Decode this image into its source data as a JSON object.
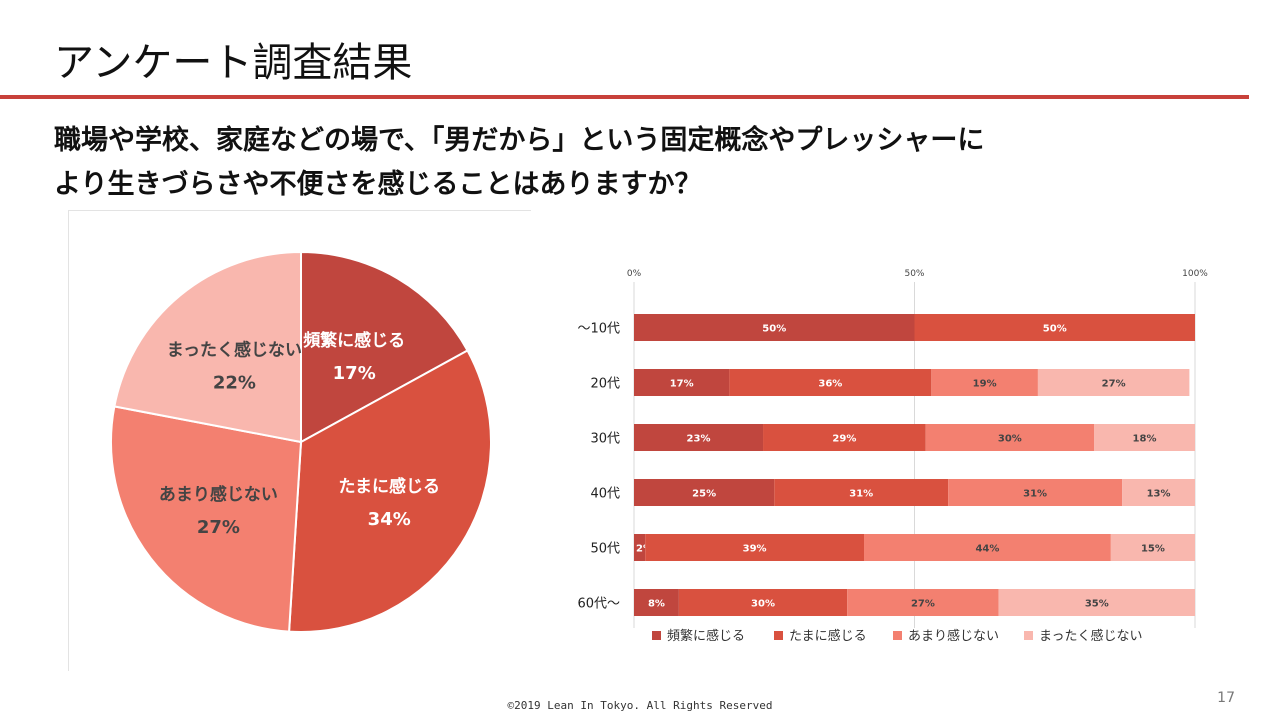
{
  "title": "アンケート調査結果",
  "question": {
    "line1": "職場や学校、家庭などの場で、「男だから」という固定概念やプレッシャーに",
    "line2": "より生きづらさや不便さを感じることはありますか？"
  },
  "colors": {
    "accent_rule": "#c8413a",
    "category": [
      "#c0463e",
      "#d9513f",
      "#f38070",
      "#f9b7ae"
    ]
  },
  "chart_data": [
    {
      "type": "pie",
      "categories": [
        "頻繁に感じる",
        "たまに感じる",
        "あまり感じない",
        "まったく感じない"
      ],
      "values": [
        17,
        34,
        27,
        22
      ],
      "labels": [
        "17%",
        "34%",
        "27%",
        "22%"
      ]
    },
    {
      "type": "bar",
      "orientation": "horizontal",
      "stacked": true,
      "categories": [
        "～10代",
        "20代",
        "30代",
        "40代",
        "50代",
        "60代～"
      ],
      "series": [
        {
          "name": "頻繁に感じる",
          "values": [
            50,
            17,
            23,
            25,
            2,
            8
          ]
        },
        {
          "name": "たまに感じる",
          "values": [
            50,
            36,
            29,
            31,
            39,
            30
          ]
        },
        {
          "name": "あまり感じない",
          "values": [
            0,
            19,
            30,
            31,
            44,
            27
          ]
        },
        {
          "name": "まったく感じない",
          "values": [
            0,
            27,
            18,
            13,
            15,
            35
          ]
        }
      ],
      "x_ticks": [
        "0%",
        "50%",
        "100%"
      ],
      "xlim": [
        0,
        100
      ],
      "legend_position": "bottom",
      "grid": true
    }
  ],
  "footer": "©2019 Lean In Tokyo. All Rights Reserved",
  "page_number": "17"
}
